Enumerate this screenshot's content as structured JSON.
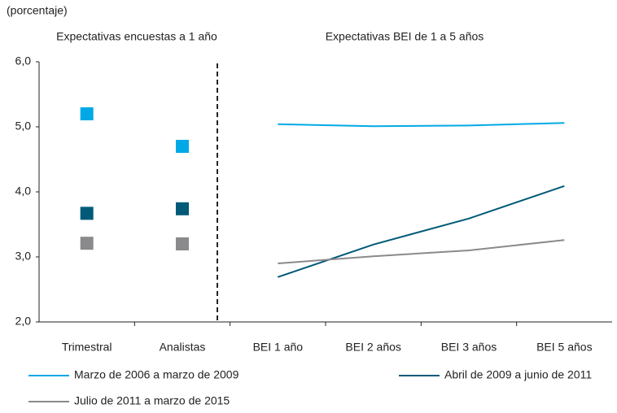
{
  "chart_data": [
    {
      "type": "scatter",
      "title": "Expectativas encuestas a 1 año",
      "ylabel": "(porcentaje)",
      "categories": [
        "Trimestral",
        "Analistas"
      ],
      "series": [
        {
          "color": "#00a9e6",
          "values": [
            5.2,
            4.7
          ]
        },
        {
          "color": "#005a78",
          "values": [
            3.67,
            3.74
          ]
        },
        {
          "color": "#8a8a8c",
          "values": [
            3.21,
            3.2
          ]
        }
      ],
      "ylim": [
        2,
        6
      ],
      "yticks": [
        {
          "value": 2,
          "label": "2,0"
        },
        {
          "value": 3,
          "label": "3,0"
        },
        {
          "value": 4,
          "label": "4,0"
        },
        {
          "value": 5,
          "label": "5,0"
        },
        {
          "value": 6,
          "label": "6,0"
        }
      ]
    },
    {
      "type": "line",
      "title": "Expectativas BEI de 1 a 5 años",
      "categories": [
        "BEI 1 año",
        "BEI 2 años",
        "BEI 3 años",
        "BEI 5 años"
      ],
      "series": [
        {
          "name": "Marzo de 2006 a marzo de 2009",
          "color": "#00a9e6",
          "values": [
            5.04,
            5.01,
            5.02,
            5.06
          ]
        },
        {
          "name": "Abril de 2009 a junio de 2011",
          "color": "#005a78",
          "values": [
            2.69,
            3.19,
            3.59,
            4.09
          ]
        },
        {
          "name": "Julio de 2011 a marzo de 2015",
          "color": "#8a8a8c",
          "values": [
            2.9,
            3.01,
            3.1,
            3.26
          ]
        }
      ],
      "ylim": [
        2,
        6
      ]
    }
  ]
}
